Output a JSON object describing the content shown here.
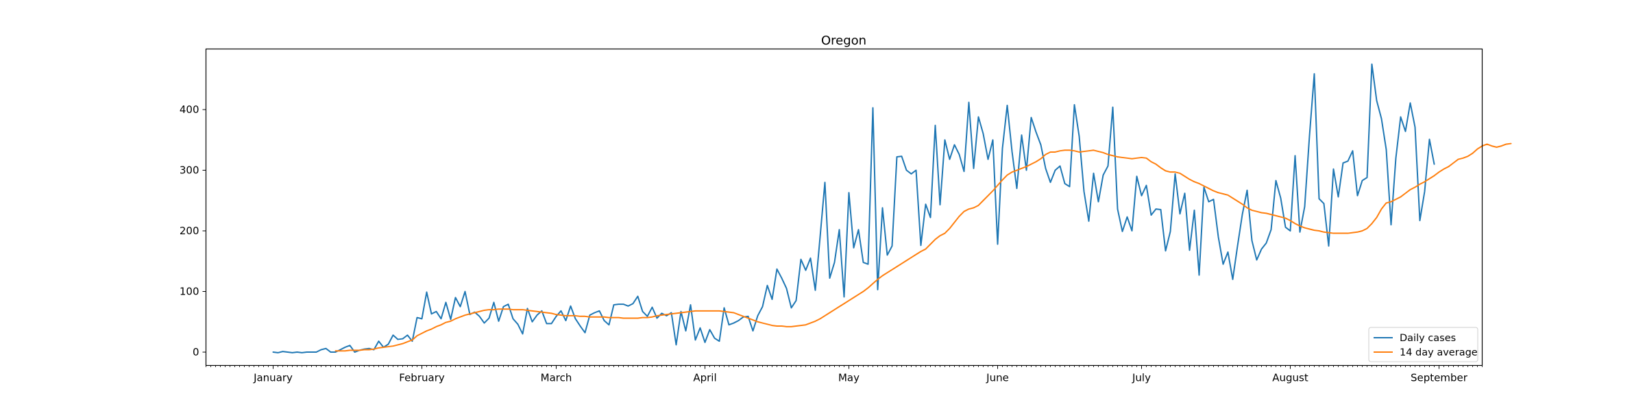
{
  "chart_data": {
    "type": "line",
    "title": "Oregon",
    "xlabel": "",
    "ylabel": "",
    "x_axis": {
      "type": "date",
      "range": [
        "2020-12-18",
        "2021-09-10"
      ],
      "ticks": [
        {
          "date": "2021-01-01",
          "label": "January"
        },
        {
          "date": "2021-02-01",
          "label": "February"
        },
        {
          "date": "2021-03-01",
          "label": "March"
        },
        {
          "date": "2021-04-01",
          "label": "April"
        },
        {
          "date": "2021-05-01",
          "label": "May"
        },
        {
          "date": "2021-06-01",
          "label": "June"
        },
        {
          "date": "2021-07-01",
          "label": "July"
        },
        {
          "date": "2021-08-01",
          "label": "August"
        },
        {
          "date": "2021-09-01",
          "label": "September"
        }
      ]
    },
    "ylim": [
      -22,
      500
    ],
    "yticks": [
      0,
      100,
      200,
      300,
      400
    ],
    "grid": false,
    "legend_position": "lower-right",
    "series": [
      {
        "name": "Daily cases",
        "color": "#1f77b4",
        "start_date": "2021-01-01",
        "values": [
          0,
          -1,
          1,
          0,
          -1,
          0,
          -1,
          0,
          0,
          0,
          4,
          6,
          0,
          0,
          4,
          8,
          11,
          0,
          3,
          5,
          6,
          4,
          18,
          8,
          13,
          28,
          21,
          22,
          28,
          18,
          57,
          55,
          99,
          63,
          67,
          55,
          82,
          54,
          90,
          75,
          100,
          62,
          66,
          59,
          48,
          56,
          82,
          51,
          75,
          79,
          55,
          46,
          30,
          72,
          50,
          61,
          68,
          47,
          47,
          59,
          68,
          52,
          76,
          55,
          43,
          32,
          61,
          65,
          68,
          52,
          45,
          78,
          79,
          79,
          76,
          80,
          92,
          67,
          59,
          74,
          56,
          64,
          60,
          65,
          12,
          67,
          35,
          78,
          20,
          40,
          16,
          37,
          23,
          18,
          73,
          45,
          48,
          52,
          58,
          59,
          35,
          60,
          75,
          110,
          87,
          137,
          122,
          105,
          73,
          85,
          153,
          135,
          155,
          102,
          190,
          280,
          122,
          148,
          202,
          91,
          263,
          172,
          202,
          148,
          145,
          403,
          103,
          238,
          160,
          175,
          322,
          323,
          300,
          294,
          300,
          176,
          244,
          222,
          374,
          243,
          350,
          318,
          342,
          326,
          298,
          412,
          303,
          388,
          360,
          318,
          350,
          178,
          336,
          407,
          331,
          270,
          358,
          300,
          387,
          363,
          342,
          303,
          280,
          300,
          307,
          278,
          273,
          408,
          356,
          265,
          216,
          295,
          248,
          292,
          307,
          404,
          236,
          199,
          223,
          200,
          290,
          258,
          275,
          226,
          236,
          235,
          167,
          199,
          294,
          228,
          262,
          168,
          234,
          127,
          272,
          248,
          252,
          190,
          145,
          165,
          120,
          175,
          227,
          267,
          184,
          152,
          170,
          180,
          202,
          283,
          254,
          206,
          200,
          324,
          198,
          240,
          357,
          459,
          253,
          245,
          175,
          302,
          256,
          312,
          315,
          332,
          258,
          283,
          288,
          475,
          415,
          385,
          334,
          210,
          320,
          388,
          364,
          411,
          371,
          217,
          265,
          351,
          310
        ]
      },
      {
        "name": "14 day average",
        "color": "#ff7f0e",
        "start_date": "2021-01-14",
        "values": [
          2,
          2,
          2,
          3,
          3,
          3,
          4,
          4,
          5,
          7,
          8,
          9,
          10,
          12,
          14,
          17,
          20,
          27,
          31,
          35,
          38,
          42,
          45,
          49,
          51,
          55,
          58,
          61,
          63,
          65,
          67,
          69,
          70,
          70,
          71,
          71,
          71,
          70,
          70,
          70,
          69,
          68,
          67,
          66,
          65,
          64,
          62,
          61,
          60,
          60,
          60,
          59,
          59,
          58,
          58,
          58,
          58,
          57,
          57,
          57,
          56,
          56,
          56,
          56,
          57,
          57,
          58,
          60,
          61,
          62,
          63,
          64,
          65,
          66,
          67,
          68,
          68,
          68,
          68,
          68,
          68,
          67,
          66,
          65,
          62,
          59,
          56,
          53,
          50,
          48,
          46,
          44,
          43,
          43,
          42,
          42,
          43,
          44,
          45,
          48,
          51,
          55,
          60,
          65,
          70,
          75,
          80,
          85,
          90,
          95,
          100,
          106,
          113,
          120,
          126,
          131,
          136,
          141,
          146,
          151,
          156,
          161,
          166,
          170,
          178,
          186,
          192,
          196,
          204,
          214,
          224,
          232,
          236,
          238,
          242,
          250,
          258,
          266,
          275,
          284,
          292,
          297,
          300,
          303,
          306,
          310,
          314,
          319,
          326,
          330,
          330,
          332,
          333,
          333,
          332,
          330,
          331,
          332,
          333,
          331,
          329,
          326,
          324,
          322,
          321,
          320,
          319,
          320,
          321,
          320,
          314,
          310,
          304,
          299,
          297,
          297,
          295,
          290,
          285,
          281,
          278,
          274,
          270,
          266,
          263,
          261,
          259,
          254,
          249,
          244,
          238,
          234,
          232,
          230,
          229,
          227,
          225,
          223,
          221,
          217,
          212,
          208,
          205,
          203,
          201,
          200,
          198,
          197,
          196,
          196,
          196,
          196,
          197,
          198,
          200,
          204,
          212,
          222,
          236,
          246,
          248,
          252,
          256,
          262,
          268,
          272,
          277,
          281,
          286,
          291,
          297,
          302,
          306,
          312,
          318,
          320,
          323,
          328,
          335,
          340,
          343,
          340,
          338,
          340,
          343,
          344
        ]
      }
    ]
  }
}
